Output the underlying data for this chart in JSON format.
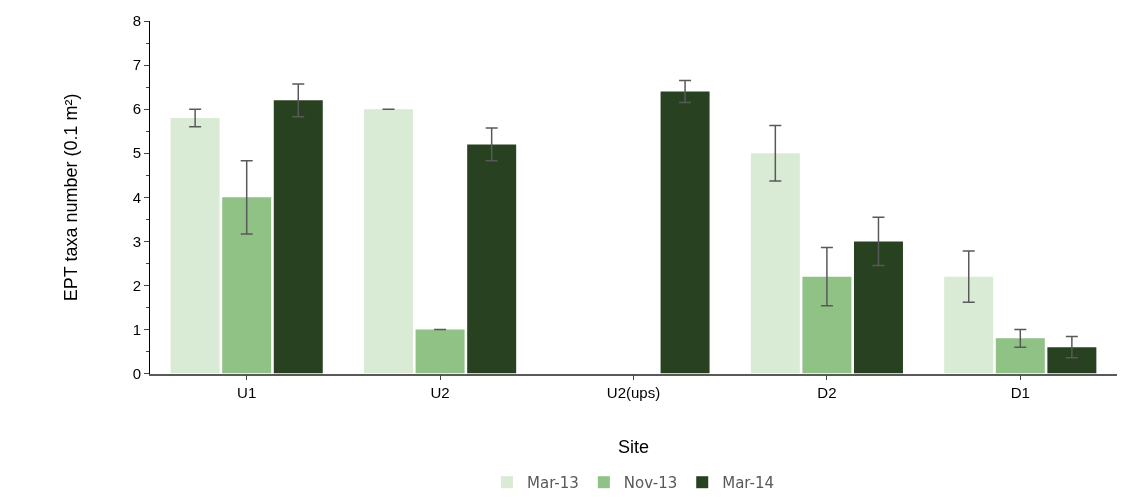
{
  "chart_data": {
    "type": "bar",
    "xlabel": "Site",
    "ylabel": "EPT taxa number (0.1 m²)",
    "categories": [
      "U1",
      "U2",
      "U2(ups)",
      "D2",
      "D1"
    ],
    "series": [
      {
        "name": "Mar-13",
        "color": "#d9ead5",
        "values": [
          5.8,
          6.0,
          null,
          5.0,
          2.2
        ],
        "errors": [
          0.2,
          0,
          null,
          0.63,
          0.58
        ]
      },
      {
        "name": "Nov-13",
        "color": "#8fc284",
        "values": [
          4.0,
          1.0,
          null,
          2.2,
          0.8
        ],
        "errors": [
          0.83,
          0,
          null,
          0.66,
          0.2
        ]
      },
      {
        "name": "Mar-14",
        "color": "#284221",
        "values": [
          6.2,
          5.2,
          6.4,
          3.0,
          0.6
        ],
        "errors": [
          0.37,
          0.37,
          0.25,
          0.55,
          0.24
        ]
      }
    ],
    "ylim": [
      0,
      8
    ],
    "yticks": [
      0,
      1,
      2,
      3,
      4,
      5,
      6,
      7,
      8
    ],
    "legend": "bottom"
  }
}
